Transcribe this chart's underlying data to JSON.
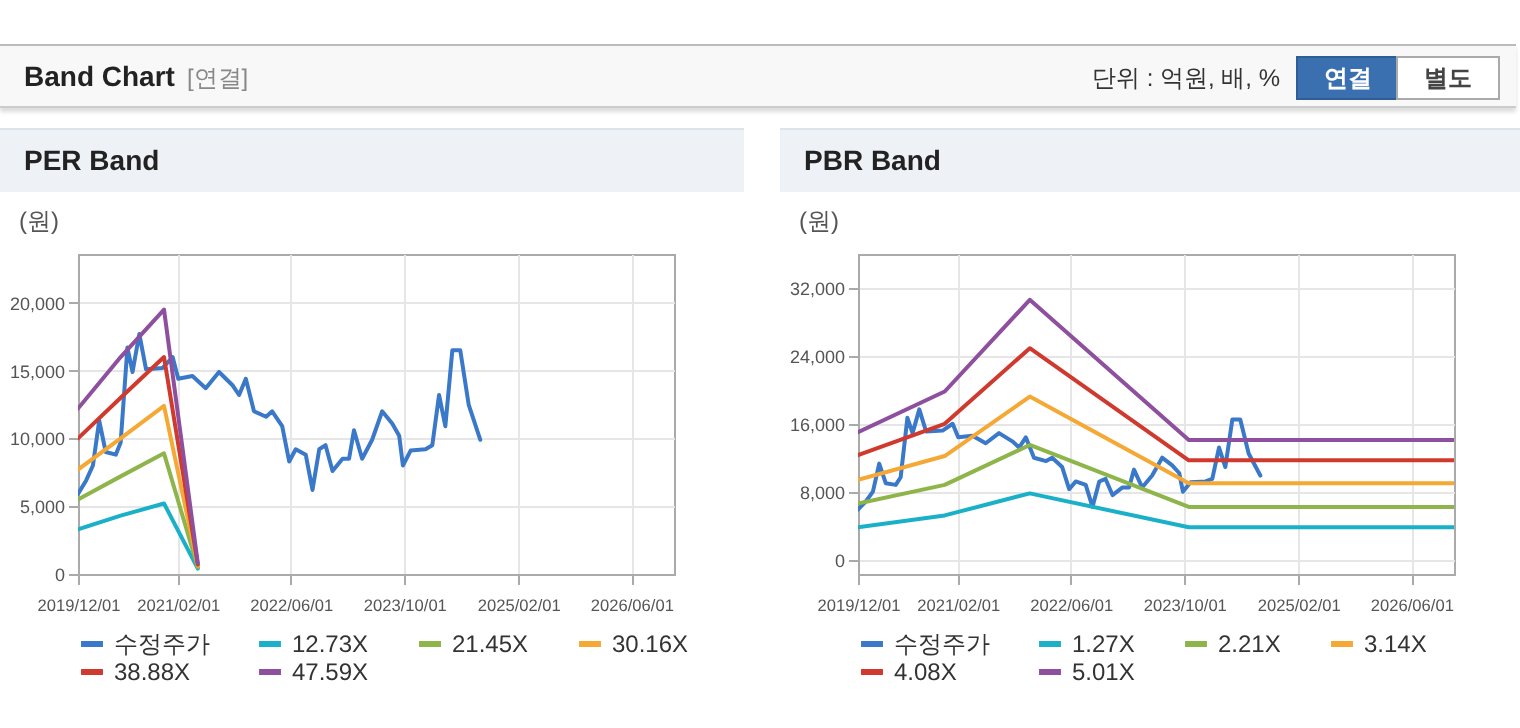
{
  "chart_data": [
    {
      "type": "other",
      "title": "Band Chart",
      "annotations": [
        "[연결]",
        "단위 : 억원, 배, %",
        "연결",
        "별도"
      ]
    },
    {
      "type": "line",
      "title": "PER Band",
      "ylabel": "(원)",
      "xlim": [
        "2019-12-01",
        "2026-12-01"
      ],
      "ylim": [
        0,
        23600
      ],
      "xticks": [
        {
          "value": "2019-12-01",
          "label": "2019/12/01"
        },
        {
          "value": "2021-02-01",
          "label": "2021/02/01"
        },
        {
          "value": "2022-06-01",
          "label": "2022/06/01"
        },
        {
          "value": "2023-10-01",
          "label": "2023/10/01"
        },
        {
          "value": "2025-02-01",
          "label": "2025/02/01"
        },
        {
          "value": "2026-06-01",
          "label": "2026/06/01"
        }
      ],
      "yticks": [
        {
          "value": 0,
          "label": "0"
        },
        {
          "value": 5000,
          "label": "5,000"
        },
        {
          "value": 10000,
          "label": "10,000"
        },
        {
          "value": 15000,
          "label": "15,000"
        },
        {
          "value": 20000,
          "label": "20,000"
        }
      ],
      "grid": true,
      "legend": "bottom",
      "series": [
        {
          "name": "수정주가",
          "color": "#3a78c9",
          "x": [
            "2019-12-01",
            "2020-01-05",
            "2020-02-03",
            "2020-03-01",
            "2020-03-29",
            "2020-05-11",
            "2020-06-01",
            "2020-06-30",
            "2020-07-22",
            "2020-08-20",
            "2020-09-18",
            "2020-11-28",
            "2021-01-10",
            "2021-02-03",
            "2021-04-05",
            "2021-06-01",
            "2021-07-28",
            "2021-09-25",
            "2021-10-22",
            "2021-11-20",
            "2021-12-25",
            "2022-02-15",
            "2022-03-13",
            "2022-04-25",
            "2022-05-25",
            "2022-06-22",
            "2022-08-04",
            "2022-09-02",
            "2022-10-01",
            "2022-10-28",
            "2022-11-27",
            "2023-01-09",
            "2023-02-06",
            "2023-02-27",
            "2023-04-03",
            "2023-05-16",
            "2023-06-28",
            "2023-08-10",
            "2023-09-09",
            "2023-09-25",
            "2023-10-28",
            "2023-12-31",
            "2024-01-29",
            "2024-02-27",
            "2024-03-25",
            "2024-04-24",
            "2024-05-28",
            "2024-07-03",
            "2024-08-22"
          ],
          "values": [
            5900,
            6900,
            8000,
            11300,
            9000,
            8800,
            9700,
            16700,
            14900,
            17700,
            15100,
            15200,
            16000,
            14400,
            14600,
            13700,
            14900,
            13900,
            13200,
            14400,
            12000,
            11600,
            12000,
            10900,
            8300,
            9200,
            8800,
            6200,
            9200,
            9500,
            7600,
            8500,
            8500,
            10600,
            8500,
            9900,
            12000,
            11100,
            10200,
            8000,
            9100,
            9200,
            9500,
            13200,
            10900,
            16500,
            16500,
            12500,
            9900
          ]
        },
        {
          "name": "12.73X",
          "color": "#1ab0c8",
          "x": [
            "2019-12-01",
            "2020-06-01",
            "2020-12-04",
            "2021-04-28"
          ],
          "values": [
            3300,
            4300,
            5200,
            400
          ]
        },
        {
          "name": "21.45X",
          "color": "#8db54a",
          "x": [
            "2019-12-01",
            "2020-06-01",
            "2020-12-04",
            "2021-04-28"
          ],
          "values": [
            5500,
            7200,
            8900,
            500
          ]
        },
        {
          "name": "30.16X",
          "color": "#f5a833",
          "x": [
            "2019-12-01",
            "2020-06-01",
            "2020-12-04",
            "2021-04-28"
          ],
          "values": [
            7700,
            10000,
            12400,
            600
          ]
        },
        {
          "name": "38.88X",
          "color": "#d03a2e",
          "x": [
            "2019-12-01",
            "2020-06-01",
            "2020-12-04",
            "2021-04-28"
          ],
          "values": [
            10000,
            13000,
            16000,
            700
          ]
        },
        {
          "name": "47.59X",
          "color": "#8e4f9e",
          "x": [
            "2019-12-01",
            "2020-06-01",
            "2020-12-04",
            "2021-04-28"
          ],
          "values": [
            12200,
            16000,
            19500,
            800
          ]
        }
      ]
    },
    {
      "type": "line",
      "title": "PBR Band",
      "ylabel": "(원)",
      "xlim": [
        "2019-12-01",
        "2026-12-01"
      ],
      "ylim": [
        -1700,
        36000
      ],
      "xticks": [
        {
          "value": "2019-12-01",
          "label": "2019/12/01"
        },
        {
          "value": "2021-02-01",
          "label": "2021/02/01"
        },
        {
          "value": "2022-06-01",
          "label": "2022/06/01"
        },
        {
          "value": "2023-10-01",
          "label": "2023/10/01"
        },
        {
          "value": "2025-02-01",
          "label": "2025/02/01"
        },
        {
          "value": "2026-06-01",
          "label": "2026/06/01"
        }
      ],
      "yticks": [
        {
          "value": 0,
          "label": "0"
        },
        {
          "value": 8000,
          "label": "8,000"
        },
        {
          "value": 16000,
          "label": "16,000"
        },
        {
          "value": 24000,
          "label": "24,000"
        },
        {
          "value": 32000,
          "label": "32,000"
        }
      ],
      "grid": true,
      "legend": "bottom",
      "series": [
        {
          "name": "수정주가",
          "color": "#3a78c9",
          "x": [
            "2019-12-01",
            "2020-01-05",
            "2020-02-03",
            "2020-03-01",
            "2020-03-29",
            "2020-05-11",
            "2020-06-01",
            "2020-06-30",
            "2020-07-22",
            "2020-08-20",
            "2020-09-18",
            "2020-11-28",
            "2021-01-10",
            "2021-02-03",
            "2021-04-05",
            "2021-06-01",
            "2021-07-28",
            "2021-09-25",
            "2021-10-22",
            "2021-11-20",
            "2021-12-25",
            "2022-02-15",
            "2022-03-13",
            "2022-04-25",
            "2022-05-25",
            "2022-06-22",
            "2022-08-04",
            "2022-09-02",
            "2022-10-01",
            "2022-10-28",
            "2022-11-27",
            "2023-01-09",
            "2023-02-06",
            "2023-02-27",
            "2023-04-03",
            "2023-05-16",
            "2023-06-28",
            "2023-08-10",
            "2023-09-09",
            "2023-09-25",
            "2023-10-28",
            "2023-12-31",
            "2024-01-29",
            "2024-02-27",
            "2024-03-25",
            "2024-04-24",
            "2024-05-28",
            "2024-07-03",
            "2024-08-22"
          ],
          "values": [
            5900,
            6900,
            8000,
            11300,
            9000,
            8800,
            9700,
            16700,
            14900,
            17700,
            15100,
            15200,
            16000,
            14400,
            14600,
            13700,
            14900,
            13900,
            13200,
            14400,
            12000,
            11600,
            12000,
            10900,
            8300,
            9200,
            8800,
            6200,
            9200,
            9500,
            7600,
            8500,
            8500,
            10600,
            8500,
            9900,
            12000,
            11100,
            10200,
            8000,
            9100,
            9200,
            9500,
            13200,
            10900,
            16500,
            16500,
            12500,
            9900
          ]
        },
        {
          "name": "1.27X",
          "color": "#1ab0c8",
          "x": [
            "2019-12-01",
            "2020-12-07",
            "2021-12-07",
            "2023-10-20",
            "2026-12-01"
          ],
          "values": [
            3800,
            5200,
            7800,
            3800,
            3800
          ]
        },
        {
          "name": "2.21X",
          "color": "#8db54a",
          "x": [
            "2019-12-01",
            "2020-12-07",
            "2021-12-07",
            "2023-10-20",
            "2026-12-01"
          ],
          "values": [
            6600,
            8800,
            13500,
            6200,
            6200
          ]
        },
        {
          "name": "3.14X",
          "color": "#f5a833",
          "x": [
            "2019-12-01",
            "2020-12-07",
            "2021-12-07",
            "2023-10-20",
            "2026-12-01"
          ],
          "values": [
            9400,
            12200,
            19200,
            9000,
            9000
          ]
        },
        {
          "name": "4.08X",
          "color": "#d03a2e",
          "x": [
            "2019-12-01",
            "2020-12-07",
            "2021-12-07",
            "2023-10-20",
            "2026-12-01"
          ],
          "values": [
            12300,
            16000,
            24900,
            11700,
            11700
          ]
        },
        {
          "name": "5.01X",
          "color": "#8e4f9e",
          "x": [
            "2019-12-01",
            "2020-12-07",
            "2021-12-07",
            "2023-10-20",
            "2026-12-01"
          ],
          "values": [
            15000,
            19800,
            30600,
            14100,
            14100
          ]
        }
      ]
    }
  ]
}
